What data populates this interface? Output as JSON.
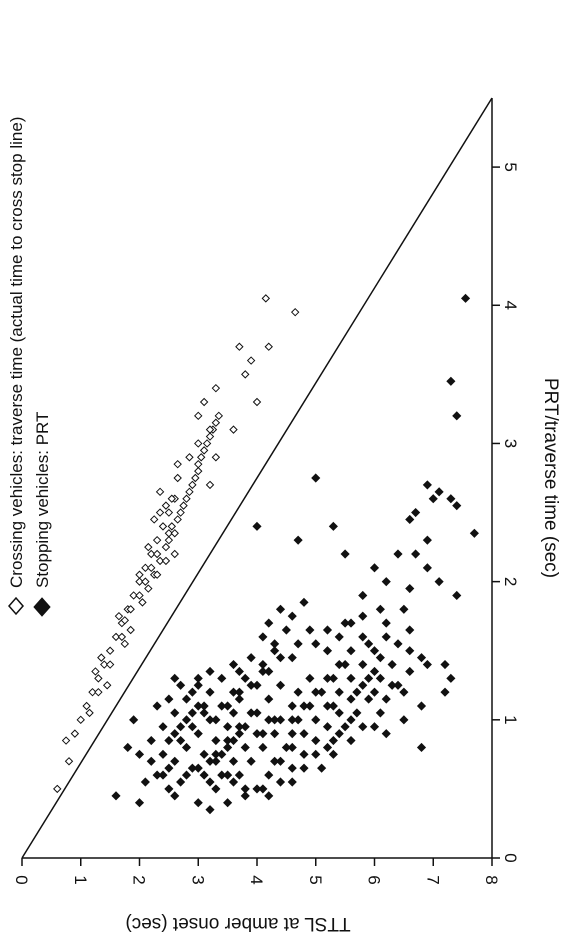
{
  "chart_data": {
    "type": "scatter",
    "title": "",
    "xlabel": "PRT/traverse time (sec)",
    "ylabel": "TTSL at amber onset (sec)",
    "xlim": [
      0,
      5.5
    ],
    "ylim": [
      0,
      8
    ],
    "xticks": [
      "0",
      "1",
      "2",
      "3",
      "4",
      "5"
    ],
    "yticks": [
      "0",
      "1",
      "2",
      "3",
      "4",
      "5",
      "6",
      "7",
      "8"
    ],
    "legend": {
      "placement": "top-left",
      "entries": [
        {
          "label": "Crossing vehicles: traverse time (actual time to cross stop line)",
          "marker": "open-diamond"
        },
        {
          "label": "Stopping vehicles: PRT",
          "marker": "filled-diamond"
        }
      ]
    },
    "reference_line": {
      "from": [
        0,
        0
      ],
      "to": [
        5.5,
        8
      ],
      "note": "diagonal line"
    },
    "series": [
      {
        "name": "Crossing vehicles: traverse time (actual time to cross stop line)",
        "marker": "open-diamond",
        "points": [
          [
            0.5,
            0.6
          ],
          [
            0.7,
            0.8
          ],
          [
            0.9,
            0.9
          ],
          [
            1.0,
            1.0
          ],
          [
            1.1,
            1.1
          ],
          [
            1.2,
            1.2
          ],
          [
            1.3,
            1.3
          ],
          [
            1.4,
            1.4
          ],
          [
            1.5,
            1.5
          ],
          [
            1.6,
            1.6
          ],
          [
            1.7,
            1.7
          ],
          [
            1.8,
            1.8
          ],
          [
            1.9,
            1.9
          ],
          [
            2.0,
            2.0
          ],
          [
            2.1,
            2.1
          ],
          [
            2.2,
            2.2
          ],
          [
            2.3,
            2.3
          ],
          [
            2.4,
            2.4
          ],
          [
            2.5,
            2.5
          ],
          [
            2.6,
            2.6
          ],
          [
            0.85,
            0.75
          ],
          [
            1.05,
            1.15
          ],
          [
            1.25,
            1.45
          ],
          [
            1.45,
            1.35
          ],
          [
            1.55,
            1.75
          ],
          [
            1.75,
            1.65
          ],
          [
            1.85,
            2.05
          ],
          [
            1.95,
            2.15
          ],
          [
            2.05,
            2.25
          ],
          [
            2.15,
            2.35
          ],
          [
            2.25,
            2.45
          ],
          [
            2.35,
            2.5
          ],
          [
            2.45,
            2.65
          ],
          [
            2.55,
            2.75
          ],
          [
            2.65,
            2.85
          ],
          [
            2.75,
            2.95
          ],
          [
            2.85,
            3.0
          ],
          [
            2.95,
            3.1
          ],
          [
            3.05,
            3.2
          ],
          [
            3.15,
            3.3
          ],
          [
            1.35,
            1.25
          ],
          [
            1.65,
            1.85
          ],
          [
            1.72,
            1.75
          ],
          [
            1.8,
            1.85
          ],
          [
            1.9,
            2.0
          ],
          [
            2.0,
            2.1
          ],
          [
            2.05,
            2.3
          ],
          [
            2.1,
            2.2
          ],
          [
            2.2,
            2.3
          ],
          [
            2.3,
            2.5
          ],
          [
            2.35,
            2.6
          ],
          [
            2.4,
            2.55
          ],
          [
            2.5,
            2.7
          ],
          [
            2.6,
            2.8
          ],
          [
            2.7,
            2.9
          ],
          [
            2.8,
            3.0
          ],
          [
            2.9,
            3.05
          ],
          [
            3.0,
            3.15
          ],
          [
            3.1,
            3.25
          ],
          [
            3.2,
            3.35
          ],
          [
            2.2,
            2.6
          ],
          [
            2.5,
            2.35
          ],
          [
            2.6,
            2.55
          ],
          [
            2.75,
            2.65
          ],
          [
            2.9,
            2.85
          ],
          [
            3.0,
            3.0
          ],
          [
            3.1,
            3.2
          ],
          [
            3.2,
            3.0
          ],
          [
            3.3,
            3.1
          ],
          [
            3.4,
            3.3
          ],
          [
            2.7,
            3.2
          ],
          [
            2.9,
            3.3
          ],
          [
            3.1,
            3.6
          ],
          [
            3.3,
            4.0
          ],
          [
            3.5,
            3.8
          ],
          [
            3.6,
            3.9
          ],
          [
            3.7,
            3.7
          ],
          [
            3.95,
            4.65
          ],
          [
            4.05,
            4.15
          ],
          [
            3.7,
            4.2
          ],
          [
            1.2,
            1.3
          ],
          [
            1.4,
            1.5
          ],
          [
            1.6,
            1.7
          ],
          [
            2.05,
            2.0
          ],
          [
            2.15,
            2.45
          ],
          [
            2.25,
            2.15
          ],
          [
            2.45,
            2.25
          ],
          [
            2.55,
            2.45
          ],
          [
            2.65,
            2.35
          ],
          [
            2.85,
            2.65
          ]
        ]
      },
      {
        "name": "Stopping vehicles: PRT",
        "marker": "filled-diamond",
        "points": [
          [
            0.45,
            1.6
          ],
          [
            0.4,
            2.0
          ],
          [
            0.8,
            1.8
          ],
          [
            0.6,
            2.3
          ],
          [
            0.5,
            2.5
          ],
          [
            0.55,
            2.7
          ],
          [
            0.65,
            2.9
          ],
          [
            0.75,
            3.1
          ],
          [
            0.85,
            3.3
          ],
          [
            0.95,
            3.5
          ],
          [
            0.55,
            3.2
          ],
          [
            0.6,
            3.4
          ],
          [
            0.7,
            3.6
          ],
          [
            0.8,
            3.8
          ],
          [
            0.9,
            4.0
          ],
          [
            1.0,
            4.2
          ],
          [
            0.65,
            3.0
          ],
          [
            0.7,
            3.2
          ],
          [
            0.75,
            3.4
          ],
          [
            0.85,
            3.6
          ],
          [
            0.95,
            3.8
          ],
          [
            1.05,
            4.0
          ],
          [
            1.15,
            4.2
          ],
          [
            1.25,
            4.4
          ],
          [
            0.5,
            4.0
          ],
          [
            0.6,
            3.7
          ],
          [
            0.9,
            2.6
          ],
          [
            1.0,
            2.8
          ],
          [
            1.1,
            3.0
          ],
          [
            1.2,
            3.2
          ],
          [
            0.8,
            2.8
          ],
          [
            0.9,
            3.0
          ],
          [
            1.0,
            3.2
          ],
          [
            1.1,
            3.4
          ],
          [
            1.2,
            3.6
          ],
          [
            1.3,
            3.8
          ],
          [
            0.85,
            2.2
          ],
          [
            0.95,
            2.4
          ],
          [
            1.05,
            2.6
          ],
          [
            1.15,
            2.8
          ],
          [
            1.25,
            3.0
          ],
          [
            1.35,
            3.2
          ],
          [
            1.3,
            2.6
          ],
          [
            1.0,
            1.9
          ],
          [
            1.1,
            2.3
          ],
          [
            0.75,
            2.4
          ],
          [
            0.7,
            2.6
          ],
          [
            0.6,
            2.8
          ],
          [
            0.55,
            3.6
          ],
          [
            0.5,
            3.8
          ],
          [
            0.45,
            4.2
          ],
          [
            0.55,
            4.4
          ],
          [
            0.65,
            4.6
          ],
          [
            0.75,
            4.8
          ],
          [
            0.85,
            5.0
          ],
          [
            0.95,
            5.2
          ],
          [
            1.05,
            5.4
          ],
          [
            1.15,
            5.6
          ],
          [
            1.25,
            5.8
          ],
          [
            1.35,
            6.0
          ],
          [
            0.7,
            4.4
          ],
          [
            0.8,
            4.6
          ],
          [
            0.9,
            4.8
          ],
          [
            1.0,
            5.0
          ],
          [
            1.1,
            5.2
          ],
          [
            1.2,
            5.4
          ],
          [
            1.3,
            5.6
          ],
          [
            1.4,
            5.8
          ],
          [
            1.5,
            6.0
          ],
          [
            1.6,
            6.2
          ],
          [
            1.0,
            4.6
          ],
          [
            1.1,
            4.8
          ],
          [
            1.2,
            5.0
          ],
          [
            1.3,
            5.2
          ],
          [
            1.4,
            5.4
          ],
          [
            1.5,
            5.6
          ],
          [
            1.6,
            5.8
          ],
          [
            1.45,
            4.4
          ],
          [
            1.55,
            4.7
          ],
          [
            1.65,
            4.9
          ],
          [
            1.25,
            4.0
          ],
          [
            1.35,
            4.2
          ],
          [
            1.45,
            4.6
          ],
          [
            1.55,
            5.0
          ],
          [
            1.65,
            5.2
          ],
          [
            1.6,
            4.1
          ],
          [
            1.7,
            5.5
          ],
          [
            1.75,
            5.8
          ],
          [
            1.8,
            6.1
          ],
          [
            1.5,
            6.6
          ],
          [
            0.9,
            6.2
          ],
          [
            1.0,
            6.5
          ],
          [
            1.1,
            6.8
          ],
          [
            0.8,
            6.8
          ],
          [
            1.2,
            7.2
          ],
          [
            1.4,
            7.2
          ],
          [
            1.3,
            7.3
          ],
          [
            1.4,
            6.9
          ],
          [
            1.2,
            6.5
          ],
          [
            1.05,
            6.1
          ],
          [
            0.95,
            5.8
          ],
          [
            0.85,
            5.6
          ],
          [
            0.75,
            5.3
          ],
          [
            0.65,
            5.1
          ],
          [
            1.15,
            5.9
          ],
          [
            1.25,
            6.3
          ],
          [
            1.35,
            6.6
          ],
          [
            1.45,
            6.8
          ],
          [
            1.55,
            6.4
          ],
          [
            1.65,
            6.6
          ],
          [
            1.9,
            5.8
          ],
          [
            2.0,
            6.2
          ],
          [
            2.1,
            6.0
          ],
          [
            2.2,
            6.4
          ],
          [
            1.95,
            6.6
          ],
          [
            2.1,
            6.9
          ],
          [
            2.0,
            7.1
          ],
          [
            2.2,
            6.7
          ],
          [
            2.3,
            6.9
          ],
          [
            2.45,
            6.6
          ],
          [
            2.5,
            6.7
          ],
          [
            2.6,
            7.0
          ],
          [
            2.6,
            7.3
          ],
          [
            2.7,
            6.9
          ],
          [
            2.65,
            7.1
          ],
          [
            2.4,
            5.3
          ],
          [
            2.2,
            5.5
          ],
          [
            2.3,
            4.7
          ],
          [
            2.4,
            4.0
          ],
          [
            2.75,
            5.0
          ],
          [
            3.2,
            7.4
          ],
          [
            3.45,
            7.3
          ],
          [
            4.05,
            7.55
          ],
          [
            2.55,
            7.4
          ],
          [
            2.35,
            7.7
          ],
          [
            1.9,
            7.4
          ],
          [
            1.7,
            6.2
          ],
          [
            1.8,
            6.5
          ],
          [
            1.4,
            6.3
          ],
          [
            1.3,
            6.1
          ],
          [
            0.4,
            3.0
          ],
          [
            0.5,
            3.3
          ],
          [
            0.6,
            3.5
          ],
          [
            0.7,
            3.9
          ],
          [
            0.8,
            4.1
          ],
          [
            0.9,
            4.3
          ],
          [
            1.0,
            4.4
          ],
          [
            1.1,
            4.6
          ],
          [
            1.2,
            4.7
          ],
          [
            1.3,
            4.9
          ],
          [
            0.55,
            2.1
          ],
          [
            0.45,
            2.6
          ],
          [
            0.35,
            3.2
          ],
          [
            0.4,
            3.5
          ],
          [
            0.45,
            3.8
          ],
          [
            0.5,
            4.1
          ],
          [
            1.05,
            3.6
          ],
          [
            1.15,
            3.7
          ],
          [
            1.25,
            3.9
          ],
          [
            1.35,
            4.1
          ],
          [
            0.75,
            3.3
          ],
          [
            0.85,
            3.5
          ],
          [
            0.95,
            3.7
          ],
          [
            1.05,
            3.9
          ],
          [
            0.6,
            4.2
          ],
          [
            0.7,
            4.3
          ],
          [
            0.8,
            4.5
          ],
          [
            0.9,
            4.6
          ],
          [
            1.0,
            4.7
          ],
          [
            1.1,
            4.9
          ],
          [
            1.2,
            5.1
          ],
          [
            1.3,
            5.3
          ],
          [
            1.4,
            5.5
          ],
          [
            1.5,
            5.2
          ],
          [
            1.6,
            5.4
          ],
          [
            1.7,
            5.6
          ],
          [
            1.75,
            4.6
          ],
          [
            1.85,
            4.8
          ],
          [
            1.5,
            4.3
          ],
          [
            1.4,
            4.1
          ],
          [
            1.1,
            3.5
          ],
          [
            1.2,
            3.7
          ],
          [
            1.3,
            3.4
          ],
          [
            1.4,
            3.6
          ],
          [
            0.95,
            2.9
          ],
          [
            1.05,
            3.1
          ],
          [
            0.85,
            2.7
          ],
          [
            0.65,
            2.5
          ],
          [
            0.7,
            2.2
          ],
          [
            0.6,
            2.4
          ],
          [
            1.2,
            6.0
          ],
          [
            1.3,
            5.9
          ],
          [
            1.0,
            5.6
          ],
          [
            0.9,
            5.4
          ],
          [
            0.8,
            5.2
          ],
          [
            1.1,
            5.3
          ],
          [
            1.2,
            5.7
          ],
          [
            0.95,
            6.0
          ],
          [
            1.45,
            6.1
          ],
          [
            1.55,
            5.9
          ],
          [
            1.8,
            4.4
          ],
          [
            1.7,
            4.2
          ],
          [
            1.65,
            4.5
          ],
          [
            1.55,
            4.3
          ],
          [
            1.45,
            3.9
          ],
          [
            1.35,
            3.7
          ],
          [
            1.15,
            2.5
          ],
          [
            1.2,
            2.9
          ],
          [
            1.3,
            3.0
          ],
          [
            1.25,
            2.7
          ],
          [
            0.9,
            4.1
          ],
          [
            1.0,
            4.3
          ],
          [
            0.55,
            4.6
          ],
          [
            0.65,
            4.8
          ],
          [
            0.75,
            5.0
          ],
          [
            0.85,
            5.3
          ],
          [
            0.95,
            5.5
          ],
          [
            1.05,
            5.7
          ],
          [
            1.15,
            6.2
          ],
          [
            1.25,
            6.4
          ],
          [
            0.6,
            3.1
          ],
          [
            0.7,
            3.3
          ],
          [
            0.8,
            3.5
          ],
          [
            0.9,
            3.7
          ],
          [
            1.0,
            3.3
          ],
          [
            1.1,
            3.1
          ],
          [
            0.75,
            2.0
          ],
          [
            0.85,
            2.5
          ],
          [
            0.95,
            2.7
          ],
          [
            1.05,
            2.9
          ]
        ]
      }
    ]
  }
}
